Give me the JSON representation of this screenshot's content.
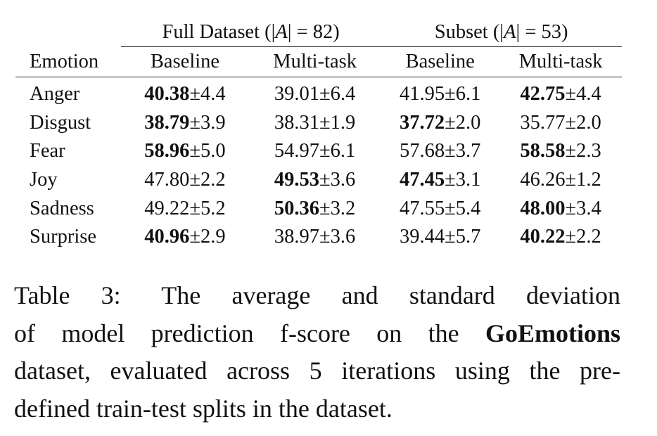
{
  "table": {
    "group_headers": [
      {
        "prefix": "Full Dataset (|",
        "var": "A",
        "suffix": "| = 82)"
      },
      {
        "prefix": "Subset (|",
        "var": "A",
        "suffix": "| = 53)"
      }
    ],
    "columns": [
      "Emotion",
      "Baseline",
      "Multi-task",
      "Baseline",
      "Multi-task"
    ],
    "rows": [
      {
        "emotion": "Anger",
        "cells": [
          {
            "value": "40.38",
            "pm": "±4.4",
            "bold": true
          },
          {
            "value": "39.01",
            "pm": "±6.4",
            "bold": false
          },
          {
            "value": "41.95",
            "pm": "±6.1",
            "bold": false
          },
          {
            "value": "42.75",
            "pm": "±4.4",
            "bold": true
          }
        ]
      },
      {
        "emotion": "Disgust",
        "cells": [
          {
            "value": "38.79",
            "pm": "±3.9",
            "bold": true
          },
          {
            "value": "38.31",
            "pm": "±1.9",
            "bold": false
          },
          {
            "value": "37.72",
            "pm": "±2.0",
            "bold": true
          },
          {
            "value": "35.77",
            "pm": "±2.0",
            "bold": false
          }
        ]
      },
      {
        "emotion": "Fear",
        "cells": [
          {
            "value": "58.96",
            "pm": "±5.0",
            "bold": true
          },
          {
            "value": "54.97",
            "pm": "±6.1",
            "bold": false
          },
          {
            "value": "57.68",
            "pm": "±3.7",
            "bold": false
          },
          {
            "value": "58.58",
            "pm": "±2.3",
            "bold": true
          }
        ]
      },
      {
        "emotion": "Joy",
        "cells": [
          {
            "value": "47.80",
            "pm": "±2.2",
            "bold": false
          },
          {
            "value": "49.53",
            "pm": "±3.6",
            "bold": true
          },
          {
            "value": "47.45",
            "pm": "±3.1",
            "bold": true
          },
          {
            "value": "46.26",
            "pm": "±1.2",
            "bold": false
          }
        ]
      },
      {
        "emotion": "Sadness",
        "cells": [
          {
            "value": "49.22",
            "pm": "±5.2",
            "bold": false
          },
          {
            "value": "50.36",
            "pm": "±3.2",
            "bold": true
          },
          {
            "value": "47.55",
            "pm": "±5.4",
            "bold": false
          },
          {
            "value": "48.00",
            "pm": "±3.4",
            "bold": true
          }
        ]
      },
      {
        "emotion": "Surprise",
        "cells": [
          {
            "value": "40.96",
            "pm": "±2.9",
            "bold": true
          },
          {
            "value": "38.97",
            "pm": "±3.6",
            "bold": false
          },
          {
            "value": "39.44",
            "pm": "±5.7",
            "bold": false
          },
          {
            "value": "40.22",
            "pm": "±2.2",
            "bold": true
          }
        ]
      }
    ]
  },
  "caption": {
    "label": "Table 3:",
    "line1": "The average and standard deviation",
    "line2_pre": "of model prediction f-score on the",
    "line2_bold": "GoEmotions",
    "line3": "dataset, evaluated across 5 iterations using the pre-",
    "line4": "defined train-test splits in the dataset."
  }
}
